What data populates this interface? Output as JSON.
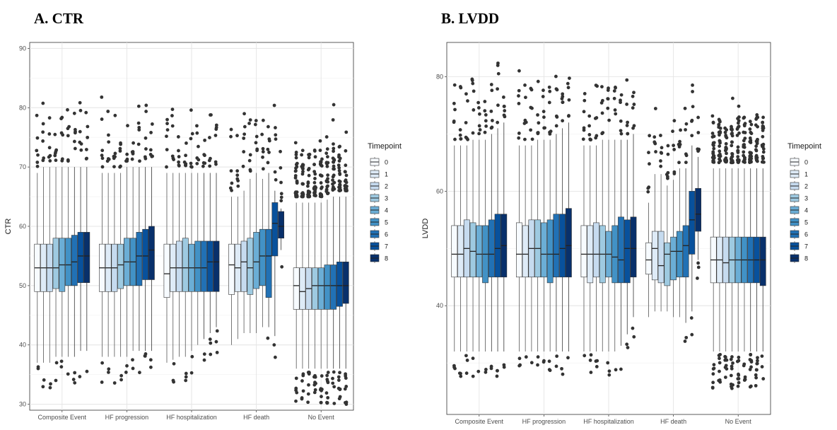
{
  "chart_data": [
    {
      "type": "box",
      "panel_title": "A. CTR",
      "xlabel": "",
      "ylabel": "CTR",
      "ylim": [
        29,
        91
      ],
      "yticks": [
        30,
        40,
        50,
        60,
        70,
        80,
        90
      ],
      "categories": [
        "Composite Event",
        "HF progression",
        "HF hospitalization",
        "HF death",
        "No Event"
      ],
      "legend": {
        "title": "Timepoint",
        "labels": [
          "0",
          "1",
          "2",
          "3",
          "4",
          "5",
          "6",
          "7",
          "8"
        ],
        "position": "right"
      },
      "colors": [
        "#f7fbff",
        "#deebf7",
        "#c6dbef",
        "#9ecae1",
        "#6baed6",
        "#4292c6",
        "#2171b5",
        "#08519c",
        "#08306b"
      ],
      "grid": true,
      "series": [
        {
          "category": "Composite Event",
          "boxes": [
            {
              "t": "0",
              "q1": 49,
              "med": 53,
              "q3": 57,
              "lo": 37,
              "hi": 69
            },
            {
              "t": "1",
              "q1": 49,
              "med": 53,
              "q3": 57,
              "lo": 37,
              "hi": 70
            },
            {
              "t": "2",
              "q1": 49,
              "med": 53,
              "q3": 57,
              "lo": 37,
              "hi": 70
            },
            {
              "t": "3",
              "q1": 49.5,
              "med": 53,
              "q3": 58,
              "lo": 38,
              "hi": 70
            },
            {
              "t": "4",
              "q1": 49,
              "med": 53.5,
              "q3": 58,
              "lo": 38,
              "hi": 70
            },
            {
              "t": "5",
              "q1": 50,
              "med": 53.5,
              "q3": 58,
              "lo": 38,
              "hi": 70
            },
            {
              "t": "6",
              "q1": 50,
              "med": 54,
              "q3": 58.5,
              "lo": 38,
              "hi": 70
            },
            {
              "t": "7",
              "q1": 50.5,
              "med": 55,
              "q3": 59,
              "lo": 39,
              "hi": 70
            },
            {
              "t": "8",
              "q1": 50.5,
              "med": 55,
              "q3": 59,
              "lo": 39,
              "hi": 70
            }
          ]
        },
        {
          "category": "HF progression",
          "boxes": [
            {
              "t": "0",
              "q1": 49,
              "med": 53,
              "q3": 57,
              "lo": 38,
              "hi": 69
            },
            {
              "t": "1",
              "q1": 49,
              "med": 53,
              "q3": 57,
              "lo": 38,
              "hi": 69
            },
            {
              "t": "2",
              "q1": 49,
              "med": 53,
              "q3": 57,
              "lo": 38,
              "hi": 69
            },
            {
              "t": "3",
              "q1": 49.5,
              "med": 53.5,
              "q3": 57,
              "lo": 38,
              "hi": 69
            },
            {
              "t": "4",
              "q1": 50,
              "med": 54,
              "q3": 58,
              "lo": 38,
              "hi": 70
            },
            {
              "t": "5",
              "q1": 50,
              "med": 54,
              "q3": 58,
              "lo": 39,
              "hi": 70
            },
            {
              "t": "6",
              "q1": 50,
              "med": 55,
              "q3": 59,
              "lo": 39,
              "hi": 70
            },
            {
              "t": "7",
              "q1": 51,
              "med": 55,
              "q3": 59.5,
              "lo": 39,
              "hi": 70
            },
            {
              "t": "8",
              "q1": 51,
              "med": 56,
              "q3": 60,
              "lo": 39,
              "hi": 70
            }
          ]
        },
        {
          "category": "HF hospitalization",
          "boxes": [
            {
              "t": "0",
              "q1": 48,
              "med": 52,
              "q3": 57,
              "lo": 37,
              "hi": 69
            },
            {
              "t": "1",
              "q1": 49,
              "med": 53,
              "q3": 57,
              "lo": 37.5,
              "hi": 69
            },
            {
              "t": "2",
              "q1": 49,
              "med": 53,
              "q3": 57.5,
              "lo": 38,
              "hi": 69
            },
            {
              "t": "3",
              "q1": 49,
              "med": 53,
              "q3": 58,
              "lo": 38,
              "hi": 69
            },
            {
              "t": "4",
              "q1": 49,
              "med": 53,
              "q3": 57,
              "lo": 39,
              "hi": 69
            },
            {
              "t": "5",
              "q1": 49,
              "med": 53,
              "q3": 57.5,
              "lo": 40,
              "hi": 69
            },
            {
              "t": "6",
              "q1": 49,
              "med": 53,
              "q3": 57.5,
              "lo": 41,
              "hi": 69
            },
            {
              "t": "7",
              "q1": 49,
              "med": 54,
              "q3": 57.5,
              "lo": 42,
              "hi": 69
            },
            {
              "t": "8",
              "q1": 49,
              "med": 54,
              "q3": 57.5,
              "lo": 43,
              "hi": 69
            }
          ]
        },
        {
          "category": "HF death",
          "boxes": [
            {
              "t": "0",
              "q1": 48.5,
              "med": 53.5,
              "q3": 57,
              "lo": 40,
              "hi": 65
            },
            {
              "t": "1",
              "q1": 49,
              "med": 53,
              "q3": 57,
              "lo": 41,
              "hi": 65
            },
            {
              "t": "2",
              "q1": 49,
              "med": 54,
              "q3": 57.5,
              "lo": 42,
              "hi": 66
            },
            {
              "t": "3",
              "q1": 48.5,
              "med": 53,
              "q3": 58,
              "lo": 42,
              "hi": 68
            },
            {
              "t": "4",
              "q1": 49.5,
              "med": 54,
              "q3": 59,
              "lo": 42,
              "hi": 69
            },
            {
              "t": "5",
              "q1": 50,
              "med": 55,
              "q3": 59.5,
              "lo": 43,
              "hi": 68
            },
            {
              "t": "6",
              "q1": 48,
              "med": 55,
              "q3": 59.5,
              "lo": 43,
              "hi": 69
            },
            {
              "t": "7",
              "q1": 55,
              "med": 60.5,
              "q3": 64,
              "lo": 41.5,
              "hi": 66
            },
            {
              "t": "8",
              "q1": 58,
              "med": 60,
              "q3": 62.5,
              "lo": 56,
              "hi": 63
            }
          ]
        },
        {
          "category": "No Event",
          "boxes": [
            {
              "t": "0",
              "q1": 46,
              "med": 50,
              "q3": 53,
              "lo": 36,
              "hi": 64
            },
            {
              "t": "1",
              "q1": 46,
              "med": 49,
              "q3": 53,
              "lo": 36,
              "hi": 64
            },
            {
              "t": "2",
              "q1": 46,
              "med": 49.5,
              "q3": 53,
              "lo": 36,
              "hi": 64
            },
            {
              "t": "3",
              "q1": 46,
              "med": 50,
              "q3": 53,
              "lo": 36,
              "hi": 64
            },
            {
              "t": "4",
              "q1": 46,
              "med": 50,
              "q3": 53,
              "lo": 36,
              "hi": 64
            },
            {
              "t": "5",
              "q1": 46,
              "med": 50,
              "q3": 53.5,
              "lo": 36,
              "hi": 64.5
            },
            {
              "t": "6",
              "q1": 46,
              "med": 50,
              "q3": 53.5,
              "lo": 36,
              "hi": 65
            },
            {
              "t": "7",
              "q1": 46.5,
              "med": 50,
              "q3": 54,
              "lo": 36,
              "hi": 65
            },
            {
              "t": "8",
              "q1": 47,
              "med": 50,
              "q3": 54,
              "lo": 36,
              "hi": 65
            }
          ]
        }
      ]
    },
    {
      "type": "box",
      "panel_title": "B. LVDD",
      "xlabel": "",
      "ylabel": "LVDD",
      "ylim": [
        21,
        86
      ],
      "yticks": [
        40,
        60,
        80
      ],
      "categories": [
        "Composite Event",
        "HF progression",
        "HF hospitalization",
        "HF death",
        "No Event"
      ],
      "legend": {
        "title": "Timepoint",
        "labels": [
          "0",
          "1",
          "2",
          "3",
          "4",
          "5",
          "6",
          "7",
          "8"
        ],
        "position": "right"
      },
      "colors": [
        "#f7fbff",
        "#deebf7",
        "#c6dbef",
        "#9ecae1",
        "#6baed6",
        "#4292c6",
        "#2171b5",
        "#08519c",
        "#08306b"
      ],
      "grid": true,
      "series": [
        {
          "category": "Composite Event",
          "boxes": [
            {
              "t": "0",
              "q1": 45,
              "med": 49,
              "q3": 54,
              "lo": 32,
              "hi": 68
            },
            {
              "t": "1",
              "q1": 45,
              "med": 49,
              "q3": 54,
              "lo": 32,
              "hi": 68
            },
            {
              "t": "2",
              "q1": 45,
              "med": 50,
              "q3": 55,
              "lo": 32,
              "hi": 68
            },
            {
              "t": "3",
              "q1": 45,
              "med": 49.5,
              "q3": 54.5,
              "lo": 32,
              "hi": 69
            },
            {
              "t": "4",
              "q1": 45,
              "med": 49,
              "q3": 54,
              "lo": 32,
              "hi": 69
            },
            {
              "t": "5",
              "q1": 44,
              "med": 49,
              "q3": 54,
              "lo": 32,
              "hi": 69
            },
            {
              "t": "6",
              "q1": 45,
              "med": 49,
              "q3": 55,
              "lo": 32,
              "hi": 70
            },
            {
              "t": "7",
              "q1": 45,
              "med": 50,
              "q3": 56,
              "lo": 32,
              "hi": 71
            },
            {
              "t": "8",
              "q1": 45,
              "med": 50.5,
              "q3": 56,
              "lo": 32,
              "hi": 72
            }
          ]
        },
        {
          "category": "HF progression",
          "boxes": [
            {
              "t": "0",
              "q1": 45,
              "med": 49,
              "q3": 54.5,
              "lo": 32,
              "hi": 68
            },
            {
              "t": "1",
              "q1": 45,
              "med": 49,
              "q3": 54,
              "lo": 32,
              "hi": 68
            },
            {
              "t": "2",
              "q1": 45,
              "med": 50,
              "q3": 55,
              "lo": 32,
              "hi": 68
            },
            {
              "t": "3",
              "q1": 45,
              "med": 50,
              "q3": 55,
              "lo": 32,
              "hi": 69
            },
            {
              "t": "4",
              "q1": 45,
              "med": 49,
              "q3": 54.5,
              "lo": 32,
              "hi": 69
            },
            {
              "t": "5",
              "q1": 44,
              "med": 49,
              "q3": 55,
              "lo": 32,
              "hi": 69
            },
            {
              "t": "6",
              "q1": 45,
              "med": 49,
              "q3": 56,
              "lo": 32,
              "hi": 70
            },
            {
              "t": "7",
              "q1": 45,
              "med": 50,
              "q3": 56,
              "lo": 32,
              "hi": 71
            },
            {
              "t": "8",
              "q1": 45,
              "med": 50.5,
              "q3": 57,
              "lo": 32,
              "hi": 72
            }
          ]
        },
        {
          "category": "HF hospitalization",
          "boxes": [
            {
              "t": "0",
              "q1": 45,
              "med": 49,
              "q3": 54,
              "lo": 32,
              "hi": 68
            },
            {
              "t": "1",
              "q1": 44,
              "med": 49,
              "q3": 54,
              "lo": 32,
              "hi": 68
            },
            {
              "t": "2",
              "q1": 45,
              "med": 49,
              "q3": 54.5,
              "lo": 32,
              "hi": 68
            },
            {
              "t": "3",
              "q1": 44,
              "med": 49,
              "q3": 54,
              "lo": 32,
              "hi": 69
            },
            {
              "t": "4",
              "q1": 45,
              "med": 49,
              "q3": 53,
              "lo": 32,
              "hi": 69
            },
            {
              "t": "5",
              "q1": 44,
              "med": 48.5,
              "q3": 54,
              "lo": 32,
              "hi": 69
            },
            {
              "t": "6",
              "q1": 44,
              "med": 48,
              "q3": 55.5,
              "lo": 33,
              "hi": 69
            },
            {
              "t": "7",
              "q1": 44,
              "med": 50,
              "q3": 55,
              "lo": 35,
              "hi": 69
            },
            {
              "t": "8",
              "q1": 45,
              "med": 50,
              "q3": 55.5,
              "lo": 38,
              "hi": 70
            }
          ]
        },
        {
          "category": "HF death",
          "boxes": [
            {
              "t": "0",
              "q1": 45.5,
              "med": 48,
              "q3": 51,
              "lo": 38,
              "hi": 58
            },
            {
              "t": "1",
              "q1": 44.5,
              "med": 50,
              "q3": 53,
              "lo": 39,
              "hi": 63
            },
            {
              "t": "2",
              "q1": 44,
              "med": 47,
              "q3": 53,
              "lo": 39,
              "hi": 63
            },
            {
              "t": "3",
              "q1": 43.5,
              "med": 49,
              "q3": 51,
              "lo": 39,
              "hi": 61
            },
            {
              "t": "4",
              "q1": 44.5,
              "med": 49.5,
              "q3": 52,
              "lo": 38,
              "hi": 62
            },
            {
              "t": "5",
              "q1": 45,
              "med": 49.5,
              "q3": 53,
              "lo": 38,
              "hi": 64
            },
            {
              "t": "6",
              "q1": 45,
              "med": 50.5,
              "q3": 54,
              "lo": 37,
              "hi": 64
            },
            {
              "t": "7",
              "q1": 49,
              "med": 55,
              "q3": 60,
              "lo": 39,
              "hi": 68
            },
            {
              "t": "8",
              "q1": 53,
              "med": 56,
              "q3": 60.5,
              "lo": 48,
              "hi": 66
            }
          ]
        },
        {
          "category": "No Event",
          "boxes": [
            {
              "t": "0",
              "q1": 44,
              "med": 48,
              "q3": 52,
              "lo": 32,
              "hi": 64
            },
            {
              "t": "1",
              "q1": 44,
              "med": 48,
              "q3": 52,
              "lo": 32,
              "hi": 64
            },
            {
              "t": "2",
              "q1": 44,
              "med": 47.5,
              "q3": 52,
              "lo": 32,
              "hi": 64
            },
            {
              "t": "3",
              "q1": 44,
              "med": 48,
              "q3": 52,
              "lo": 32,
              "hi": 64
            },
            {
              "t": "4",
              "q1": 44,
              "med": 48,
              "q3": 52,
              "lo": 32,
              "hi": 64
            },
            {
              "t": "5",
              "q1": 44,
              "med": 48,
              "q3": 52,
              "lo": 32,
              "hi": 64
            },
            {
              "t": "6",
              "q1": 44,
              "med": 48,
              "q3": 52,
              "lo": 32,
              "hi": 64
            },
            {
              "t": "7",
              "q1": 44,
              "med": 48,
              "q3": 52,
              "lo": 32,
              "hi": 64
            },
            {
              "t": "8",
              "q1": 43.5,
              "med": 48,
              "q3": 52,
              "lo": 32,
              "hi": 64
            }
          ]
        }
      ]
    }
  ]
}
